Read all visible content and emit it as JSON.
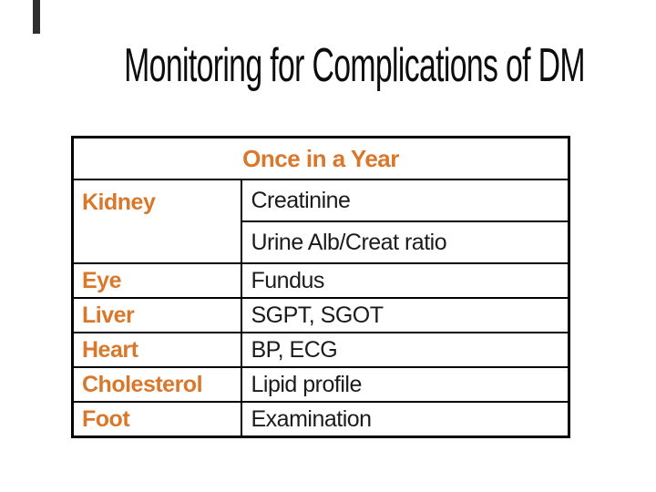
{
  "page": {
    "title": "Monitoring for Complications of DM"
  },
  "colors": {
    "accent_orange": "#D9772B",
    "text_black": "#1b1b1b",
    "border_black": "#000000"
  },
  "table": {
    "header": "Once in a Year",
    "rows": [
      {
        "organ": "Kidney",
        "test": "Creatinine"
      },
      {
        "organ": "",
        "test": "Urine Alb/Creat ratio"
      },
      {
        "organ": "Eye",
        "test": "Fundus"
      },
      {
        "organ": "Liver",
        "test": "SGPT, SGOT"
      },
      {
        "organ": "Heart",
        "test": "BP, ECG"
      },
      {
        "organ": "Cholesterol",
        "test": "Lipid profile"
      },
      {
        "organ": "Foot",
        "test": "Examination"
      }
    ]
  }
}
